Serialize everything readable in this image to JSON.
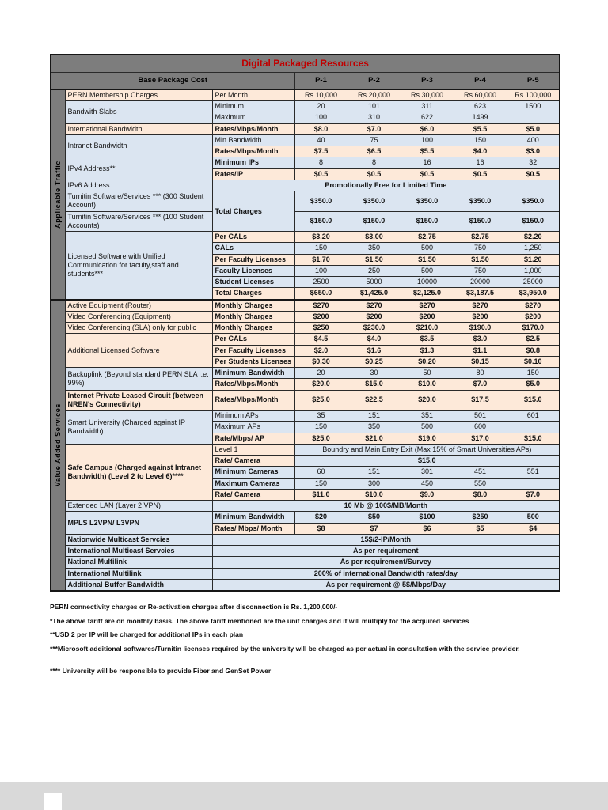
{
  "colors": {
    "gray_header": "#7d7d7d",
    "title_red": "#c00000",
    "blue": "#dbe5f1",
    "peach": "#fde9d9"
  },
  "notes": [
    "PERN connectivity charges or Re-activation charges after disconnection is Rs. 1,200,000/-",
    "*The above tariff are on monthly basis. The above tariff mentioned are the unit charges and it will multiply for the acquired services",
    "**USD 2 per IP will be charged for additional IPs in each plan",
    "***Microsoft additional softwares/Turnitin licenses required by the university will be charged as per actual in consultation with the service provider.",
    "**** University will be responsible to provide Fiber and GenSet Power"
  ],
  "table": {
    "title": "Digital Packaged Resources",
    "header": {
      "base_label": "Base Package Cost",
      "plans": [
        "P-1",
        "P-2",
        "P-3",
        "P-4",
        "P-5"
      ]
    },
    "bands": [
      {
        "label": "Applicable Traffic",
        "rows": 17
      },
      {
        "label": "Value Added Services",
        "rows": 25
      }
    ],
    "rows": [
      {
        "label": {
          "t": "PERN Membership Charges",
          "c": "p"
        },
        "sub": {
          "t": "Per Month",
          "c": "p"
        },
        "values": {
          "c": "p",
          "b": 0,
          "list": [
            "Rs 10,000",
            "Rs 20,000",
            "Rs 30,000",
            "Rs 60,000",
            "Rs 100,000"
          ]
        }
      },
      {
        "label": {
          "t": "Bandwith Slabs",
          "c": "b",
          "rs": 2
        },
        "sub": {
          "t": "Minimum",
          "c": "b"
        },
        "values": {
          "c": "b",
          "b": 0,
          "list": [
            "20",
            "101",
            "311",
            "623",
            "1500"
          ]
        }
      },
      {
        "sub": {
          "t": "Maximum",
          "c": "b"
        },
        "values": {
          "c": "b",
          "b": 0,
          "list": [
            "100",
            "310",
            "622",
            "1499",
            ""
          ]
        }
      },
      {
        "label": {
          "t": "International Bandwidth",
          "c": "p"
        },
        "sub": {
          "t": "Rates/Mbps/Month",
          "c": "p",
          "b": 1
        },
        "values": {
          "c": "p",
          "b": 1,
          "list": [
            "$8.0",
            "$7.0",
            "$6.0",
            "$5.5",
            "$5.0"
          ]
        }
      },
      {
        "label": {
          "t": "Intranet Bandwidth",
          "c": "b",
          "rs": 2
        },
        "sub": {
          "t": "Min Bandwidth",
          "c": "b"
        },
        "values": {
          "c": "b",
          "b": 0,
          "list": [
            "40",
            "75",
            "100",
            "150",
            "400"
          ]
        }
      },
      {
        "sub": {
          "t": "Rates/Mbps/Month",
          "c": "p",
          "b": 1
        },
        "values": {
          "c": "p",
          "b": 1,
          "list": [
            "$7.5",
            "$6.5",
            "$5.5",
            "$4.0",
            "$3.0"
          ]
        }
      },
      {
        "label": {
          "t": "IPv4 Address**",
          "c": "b",
          "rs": 2
        },
        "sub": {
          "t": "Minimum IPs",
          "c": "b",
          "b": 1
        },
        "values": {
          "c": "b",
          "b": 0,
          "list": [
            "8",
            "8",
            "16",
            "16",
            "32"
          ]
        }
      },
      {
        "sub": {
          "t": "Rates/IP",
          "c": "p",
          "b": 1
        },
        "values": {
          "c": "p",
          "b": 1,
          "list": [
            "$0.5",
            "$0.5",
            "$0.5",
            "$0.5",
            "$0.5"
          ]
        }
      },
      {
        "label": {
          "t": "IPv6 Address",
          "c": "b"
        },
        "span": {
          "t": "Promotionally Free for Limited Time",
          "c": "b",
          "b": 1,
          "cs": 6
        }
      },
      {
        "label": {
          "t": "Turnitin Software/Services *** (300 Student Account)",
          "c": "b"
        },
        "sub": {
          "t": "Total Charges",
          "c": "b",
          "b": 1,
          "rs": 2
        },
        "values": {
          "c": "b",
          "b": 1,
          "list": [
            "$350.0",
            "$350.0",
            "$350.0",
            "$350.0",
            "$350.0"
          ]
        }
      },
      {
        "label": {
          "t": "Turnitin Software/Services *** (100 Student Accounts)",
          "c": "b"
        },
        "values": {
          "c": "b",
          "b": 1,
          "list": [
            "$150.0",
            "$150.0",
            "$150.0",
            "$150.0",
            "$150.0"
          ]
        }
      },
      {
        "label": {
          "t": "Licensed Software with Unified Communication for faculty,staff and students***",
          "c": "b",
          "rs": 6
        },
        "sub": {
          "t": "Per CALs",
          "c": "p",
          "b": 1
        },
        "values": {
          "c": "p",
          "b": 1,
          "list": [
            "$3.20",
            "$3.00",
            "$2.75",
            "$2.75",
            "$2.20"
          ]
        }
      },
      {
        "sub": {
          "t": "CALs",
          "c": "b",
          "b": 1
        },
        "values": {
          "c": "b",
          "b": 0,
          "list": [
            "150",
            "350",
            "500",
            "750",
            "1,250"
          ]
        }
      },
      {
        "sub": {
          "t": "Per Faculty Licenses",
          "c": "p",
          "b": 1
        },
        "values": {
          "c": "p",
          "b": 1,
          "list": [
            "$1.70",
            "$1.50",
            "$1.50",
            "$1.50",
            "$1.20"
          ]
        }
      },
      {
        "sub": {
          "t": "Faculty Licenses",
          "c": "b",
          "b": 1
        },
        "values": {
          "c": "b",
          "b": 0,
          "list": [
            "100",
            "250",
            "500",
            "750",
            "1,000"
          ]
        }
      },
      {
        "sub": {
          "t": "Student Licenses",
          "c": "b",
          "b": 1
        },
        "values": {
          "c": "b",
          "b": 0,
          "list": [
            "2500",
            "5000",
            "10000",
            "20000",
            "25000"
          ]
        }
      },
      {
        "sub": {
          "t": "Total Charges",
          "c": "p",
          "b": 1
        },
        "values": {
          "c": "p",
          "b": 1,
          "list": [
            "$650.0",
            "$1,425.0",
            "$2,125.0",
            "$3,187.5",
            "$3,950.0"
          ]
        }
      },
      {
        "label": {
          "t": "Active Equipment (Router)",
          "c": "p"
        },
        "sub": {
          "t": "Monthly Charges",
          "c": "p",
          "b": 1
        },
        "values": {
          "c": "p",
          "b": 1,
          "list": [
            "$270",
            "$270",
            "$270",
            "$270",
            "$270"
          ]
        }
      },
      {
        "label": {
          "t": "Video Conferencing (Equipment)",
          "c": "p"
        },
        "sub": {
          "t": "Monthly Charges",
          "c": "p",
          "b": 1
        },
        "values": {
          "c": "p",
          "b": 1,
          "list": [
            "$200",
            "$200",
            "$200",
            "$200",
            "$200"
          ]
        }
      },
      {
        "label": {
          "t": "Video Conferencing (SLA) only for public",
          "c": "p"
        },
        "sub": {
          "t": "Monthly Charges",
          "c": "p",
          "b": 1
        },
        "values": {
          "c": "p",
          "b": 1,
          "list": [
            "$250",
            "$230.0",
            "$210.0",
            "$190.0",
            "$170.0"
          ]
        }
      },
      {
        "label": {
          "t": "Additional Licensed Software",
          "c": "p",
          "rs": 3
        },
        "sub": {
          "t": "Per CALs",
          "c": "p",
          "b": 1
        },
        "values": {
          "c": "p",
          "b": 1,
          "list": [
            "$4.5",
            "$4.0",
            "$3.5",
            "$3.0",
            "$2.5"
          ]
        }
      },
      {
        "sub": {
          "t": "Per Faculty Licenses",
          "c": "p",
          "b": 1
        },
        "values": {
          "c": "p",
          "b": 1,
          "list": [
            "$2.0",
            "$1.6",
            "$1.3",
            "$1.1",
            "$0.8"
          ]
        }
      },
      {
        "sub": {
          "t": "Per Students Licenses",
          "c": "p",
          "b": 1
        },
        "values": {
          "c": "p",
          "b": 1,
          "list": [
            "$0.30",
            "$0.25",
            "$0.20",
            "$0.15",
            "$0.10"
          ]
        }
      },
      {
        "label": {
          "t": "Backuplink (Beyond standard PERN SLA i.e. 99%)",
          "c": "b",
          "rs": 2
        },
        "sub": {
          "t": "Minimum Bandwidth",
          "c": "b",
          "b": 1
        },
        "values": {
          "c": "b",
          "b": 0,
          "list": [
            "20",
            "30",
            "50",
            "80",
            "150"
          ]
        }
      },
      {
        "sub": {
          "t": "Rates/Mbps/Month",
          "c": "p",
          "b": 1
        },
        "values": {
          "c": "p",
          "b": 1,
          "list": [
            "$20.0",
            "$15.0",
            "$10.0",
            "$7.0",
            "$5.0"
          ]
        }
      },
      {
        "label": {
          "t": "Internet Private Leased Circuit (between NREN's Connectivity)",
          "c": "p",
          "b": 1
        },
        "sub": {
          "t": "Rates/Mbps/Month",
          "c": "p",
          "b": 1
        },
        "values": {
          "c": "p",
          "b": 1,
          "list": [
            "$25.0",
            "$22.5",
            "$20.0",
            "$17.5",
            "$15.0"
          ]
        }
      },
      {
        "label": {
          "t": "Smart University (Charged against IP Bandwidth)",
          "c": "b",
          "rs": 3
        },
        "sub": {
          "t": "Minimum APs",
          "c": "b"
        },
        "values": {
          "c": "b",
          "b": 0,
          "list": [
            "35",
            "151",
            "351",
            "501",
            "601"
          ]
        }
      },
      {
        "sub": {
          "t": "Maximum APs",
          "c": "b"
        },
        "values": {
          "c": "b",
          "b": 0,
          "list": [
            "150",
            "350",
            "500",
            "600",
            ""
          ]
        }
      },
      {
        "sub": {
          "t": "Rate/Mbps/ AP",
          "c": "p",
          "b": 1
        },
        "values": {
          "c": "p",
          "b": 1,
          "list": [
            "$25.0",
            "$21.0",
            "$19.0",
            "$17.0",
            "$15.0"
          ]
        }
      },
      {
        "label": {
          "t": "Safe Campus (Charged against Intranet Bandwidth) (Level 2 to Level 6)****",
          "c": "p",
          "b": 1,
          "rs": 5
        },
        "sub": {
          "t": "Level 1",
          "c": "p"
        },
        "span": {
          "t": "Boundry and Main Entry Exit (Max 15% of Smart Universities APs)",
          "c": "b",
          "cs": 5
        }
      },
      {
        "sub": {
          "t": "Rate/ Camera",
          "c": "p",
          "b": 1
        },
        "span": {
          "t": "$15.0",
          "c": "b",
          "b": 1,
          "cs": 5
        }
      },
      {
        "sub": {
          "t": "Minimum Cameras",
          "c": "b",
          "b": 1
        },
        "values": {
          "c": "b",
          "b": 0,
          "list": [
            "60",
            "151",
            "301",
            "451",
            "551"
          ]
        }
      },
      {
        "sub": {
          "t": "Maximum Cameras",
          "c": "b",
          "b": 1
        },
        "values": {
          "c": "b",
          "b": 0,
          "list": [
            "150",
            "300",
            "450",
            "550",
            ""
          ]
        }
      },
      {
        "sub": {
          "t": "Rate/ Camera",
          "c": "p",
          "b": 1
        },
        "values": {
          "c": "p",
          "b": 1,
          "list": [
            "$11.0",
            "$10.0",
            "$9.0",
            "$8.0",
            "$7.0"
          ]
        }
      },
      {
        "label": {
          "t": "Extended LAN (Layer 2 VPN)",
          "c": "b"
        },
        "span": {
          "t": "10 Mb @ 100$/MB/Month",
          "c": "b",
          "b": 1,
          "cs": 6
        }
      },
      {
        "label": {
          "t": "MPLS L2VPN/ L3VPN",
          "c": "b",
          "b": 1,
          "rs": 2
        },
        "sub": {
          "t": "Minimum Bandwidth",
          "c": "b",
          "b": 1
        },
        "values": {
          "c": "b",
          "b": 1,
          "list": [
            "$20",
            "$50",
            "$100",
            "$250",
            "500"
          ]
        }
      },
      {
        "sub": {
          "t": "Rates/ Mbps/ Month",
          "c": "p",
          "b": 1
        },
        "values": {
          "c": "p",
          "b": 1,
          "list": [
            "$8",
            "$7",
            "$6",
            "$5",
            "$4"
          ]
        }
      },
      {
        "label": {
          "t": "Nationwide Multicast Servcies",
          "c": "b",
          "b": 1
        },
        "span": {
          "t": "15$/2-IP/Month",
          "c": "b",
          "b": 1,
          "cs": 6
        }
      },
      {
        "label": {
          "t": "International Multicast Servcies",
          "c": "b",
          "b": 1
        },
        "span": {
          "t": "As per requirement",
          "c": "b",
          "b": 1,
          "cs": 6
        }
      },
      {
        "label": {
          "t": "National Multilink",
          "c": "b",
          "b": 1
        },
        "span": {
          "t": "As per requirement/Survey",
          "c": "b",
          "b": 1,
          "cs": 6
        }
      },
      {
        "label": {
          "t": "International Multilink",
          "c": "b",
          "b": 1
        },
        "span": {
          "t": "200% of international Bandwidth rates/day",
          "c": "b",
          "b": 1,
          "cs": 6
        }
      },
      {
        "label": {
          "t": "Additional Buffer Bandwidth",
          "c": "b",
          "b": 1
        },
        "span": {
          "t": "As per requirement @ 5$/Mbps/Day",
          "c": "b",
          "b": 1,
          "cs": 6
        }
      }
    ]
  }
}
